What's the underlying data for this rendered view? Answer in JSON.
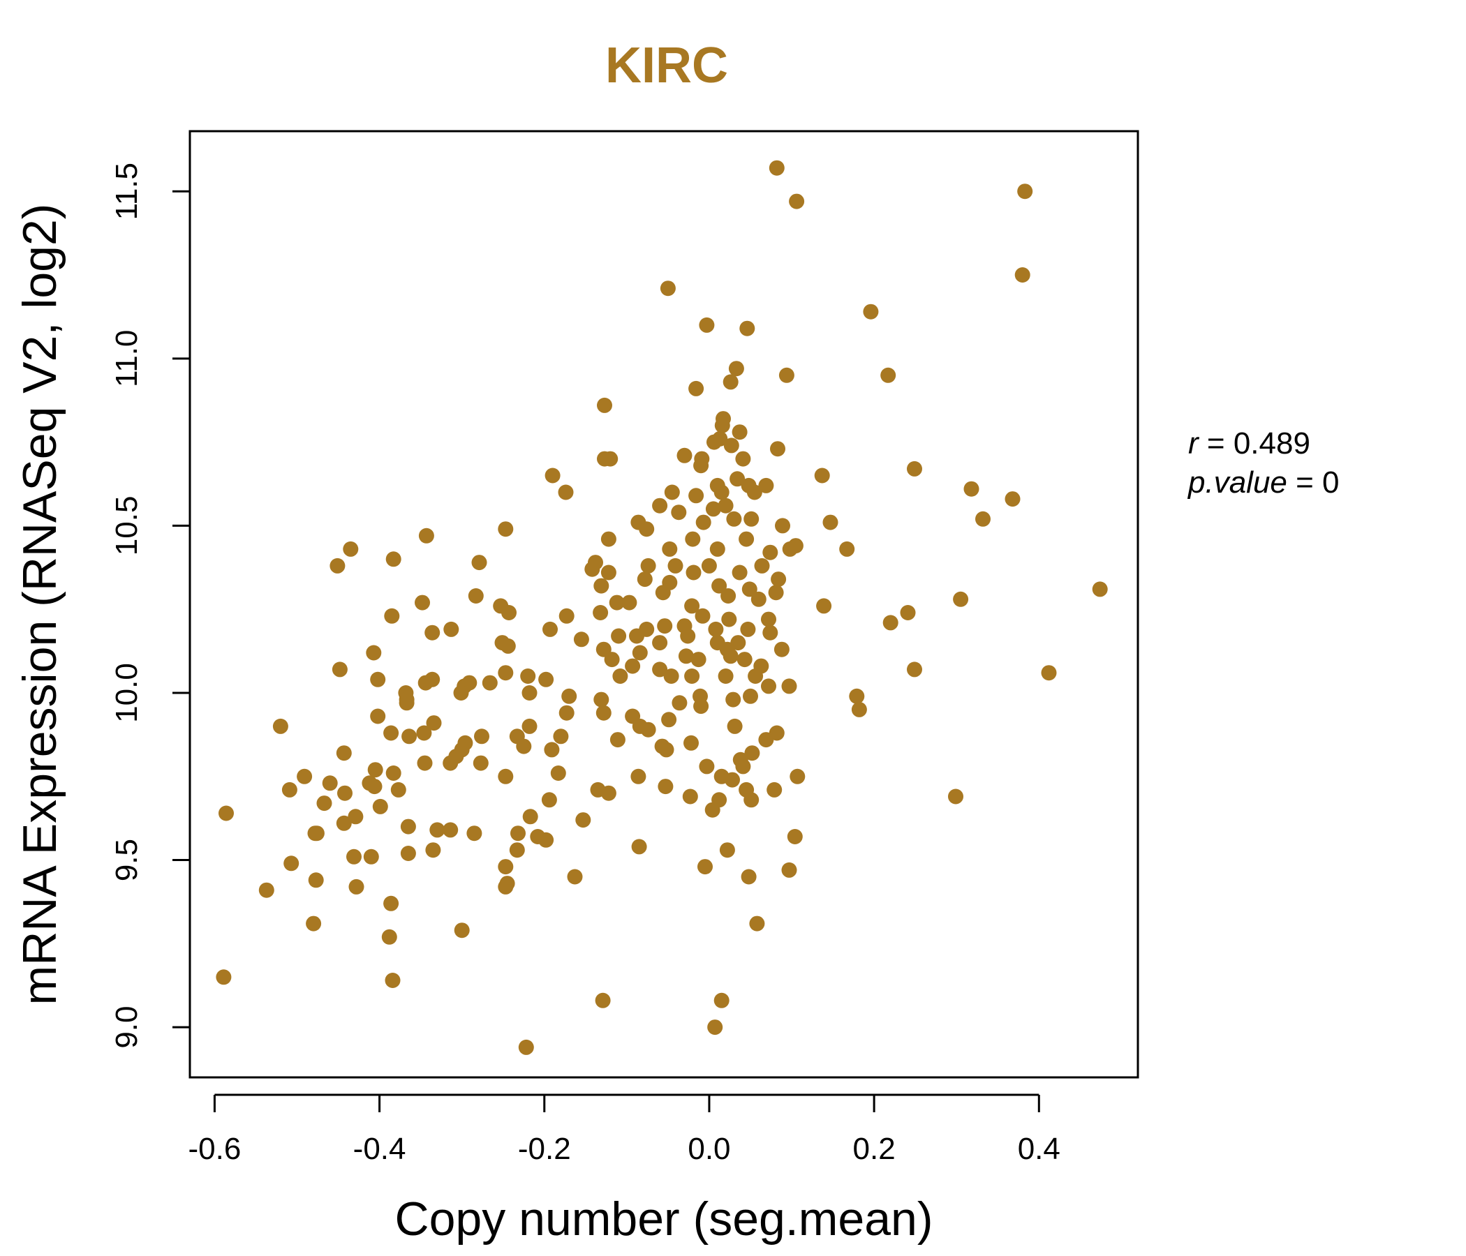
{
  "chart_data": {
    "type": "scatter",
    "title": "KIRC",
    "xlabel": "Copy number (seg.mean)",
    "ylabel": "mRNA Expression (RNASeq V2, log2)",
    "xlim": [
      -0.63,
      0.52
    ],
    "ylim": [
      8.85,
      11.68
    ],
    "x_ticks": [
      "-0.6",
      "-0.4",
      "-0.2",
      "0.0",
      "0.2",
      "0.4"
    ],
    "y_ticks": [
      "9.0",
      "9.5",
      "10.0",
      "10.5",
      "11.0",
      "11.5"
    ],
    "grid": false,
    "color": "#a87822",
    "annotation": {
      "r_label": "r",
      "r_value": "0.489",
      "p_label": "p.value",
      "p_value": "0"
    },
    "series": [
      {
        "points": [
          [
            0.082,
            11.57
          ],
          [
            0.106,
            11.47
          ],
          [
            0.383,
            11.5
          ],
          [
            0.38,
            11.25
          ],
          [
            -0.05,
            11.21
          ],
          [
            0.196,
            11.14
          ],
          [
            -0.003,
            11.1
          ],
          [
            0.046,
            11.09
          ],
          [
            0.033,
            10.97
          ],
          [
            0.026,
            10.93
          ],
          [
            0.094,
            10.95
          ],
          [
            0.217,
            10.95
          ],
          [
            -0.016,
            10.91
          ],
          [
            -0.127,
            10.86
          ],
          [
            0.017,
            10.82
          ],
          [
            0.016,
            10.8
          ],
          [
            0.037,
            10.78
          ],
          [
            0.013,
            10.76
          ],
          [
            0.006,
            10.75
          ],
          [
            0.083,
            10.73
          ],
          [
            0.027,
            10.74
          ],
          [
            -0.03,
            10.71
          ],
          [
            -0.127,
            10.7
          ],
          [
            -0.12,
            10.7
          ],
          [
            -0.009,
            10.7
          ],
          [
            0.041,
            10.7
          ],
          [
            -0.01,
            10.68
          ],
          [
            0.249,
            10.67
          ],
          [
            -0.19,
            10.65
          ],
          [
            0.137,
            10.65
          ],
          [
            0.034,
            10.64
          ],
          [
            0.01,
            10.62
          ],
          [
            0.048,
            10.62
          ],
          [
            0.069,
            10.62
          ],
          [
            0.318,
            10.61
          ],
          [
            -0.174,
            10.6
          ],
          [
            -0.045,
            10.6
          ],
          [
            -0.016,
            10.59
          ],
          [
            0.015,
            10.6
          ],
          [
            0.055,
            10.6
          ],
          [
            0.368,
            10.58
          ],
          [
            -0.06,
            10.56
          ],
          [
            0.02,
            10.56
          ],
          [
            0.005,
            10.55
          ],
          [
            -0.037,
            10.54
          ],
          [
            0.332,
            10.52
          ],
          [
            0.147,
            10.51
          ],
          [
            -0.086,
            10.51
          ],
          [
            -0.076,
            10.49
          ],
          [
            -0.007,
            10.51
          ],
          [
            0.03,
            10.52
          ],
          [
            0.089,
            10.5
          ],
          [
            0.051,
            10.52
          ],
          [
            -0.247,
            10.49
          ],
          [
            -0.343,
            10.47
          ],
          [
            -0.122,
            10.46
          ],
          [
            -0.02,
            10.46
          ],
          [
            0.045,
            10.46
          ],
          [
            0.105,
            10.44
          ],
          [
            0.098,
            10.43
          ],
          [
            -0.435,
            10.43
          ],
          [
            -0.048,
            10.43
          ],
          [
            0.01,
            10.43
          ],
          [
            0.074,
            10.42
          ],
          [
            0.167,
            10.43
          ],
          [
            -0.383,
            10.4
          ],
          [
            -0.279,
            10.39
          ],
          [
            -0.138,
            10.39
          ],
          [
            -0.074,
            10.38
          ],
          [
            -0.041,
            10.38
          ],
          [
            0.0,
            10.38
          ],
          [
            0.064,
            10.38
          ],
          [
            -0.451,
            10.38
          ],
          [
            -0.142,
            10.37
          ],
          [
            -0.019,
            10.36
          ],
          [
            0.037,
            10.36
          ],
          [
            -0.122,
            10.36
          ],
          [
            -0.078,
            10.34
          ],
          [
            0.084,
            10.34
          ],
          [
            -0.048,
            10.33
          ],
          [
            -0.131,
            10.32
          ],
          [
            0.012,
            10.32
          ],
          [
            0.049,
            10.31
          ],
          [
            0.474,
            10.31
          ],
          [
            -0.283,
            10.29
          ],
          [
            0.081,
            10.3
          ],
          [
            -0.056,
            10.3
          ],
          [
            0.023,
            10.29
          ],
          [
            0.305,
            10.28
          ],
          [
            0.06,
            10.28
          ],
          [
            -0.348,
            10.27
          ],
          [
            -0.112,
            10.27
          ],
          [
            -0.097,
            10.27
          ],
          [
            -0.021,
            10.26
          ],
          [
            0.139,
            10.26
          ],
          [
            -0.253,
            10.26
          ],
          [
            -0.132,
            10.24
          ],
          [
            -0.243,
            10.24
          ],
          [
            0.241,
            10.24
          ],
          [
            -0.008,
            10.23
          ],
          [
            -0.385,
            10.23
          ],
          [
            -0.173,
            10.23
          ],
          [
            0.024,
            10.22
          ],
          [
            0.072,
            10.22
          ],
          [
            0.22,
            10.21
          ],
          [
            -0.054,
            10.2
          ],
          [
            -0.03,
            10.2
          ],
          [
            -0.313,
            10.19
          ],
          [
            -0.193,
            10.19
          ],
          [
            -0.076,
            10.19
          ],
          [
            0.008,
            10.19
          ],
          [
            0.047,
            10.19
          ],
          [
            -0.336,
            10.18
          ],
          [
            -0.11,
            10.17
          ],
          [
            -0.088,
            10.17
          ],
          [
            0.074,
            10.18
          ],
          [
            -0.026,
            10.17
          ],
          [
            -0.251,
            10.15
          ],
          [
            -0.155,
            10.16
          ],
          [
            -0.06,
            10.15
          ],
          [
            0.01,
            10.15
          ],
          [
            0.035,
            10.15
          ],
          [
            -0.244,
            10.14
          ],
          [
            -0.128,
            10.13
          ],
          [
            0.022,
            10.13
          ],
          [
            0.088,
            10.13
          ],
          [
            -0.407,
            10.12
          ],
          [
            -0.084,
            10.12
          ],
          [
            -0.028,
            10.11
          ],
          [
            0.026,
            10.11
          ],
          [
            -0.118,
            10.1
          ],
          [
            -0.013,
            10.1
          ],
          [
            0.043,
            10.1
          ],
          [
            -0.093,
            10.08
          ],
          [
            0.063,
            10.08
          ],
          [
            -0.448,
            10.07
          ],
          [
            -0.247,
            10.06
          ],
          [
            0.249,
            10.07
          ],
          [
            0.412,
            10.06
          ],
          [
            -0.06,
            10.07
          ],
          [
            -0.046,
            10.05
          ],
          [
            -0.021,
            10.05
          ],
          [
            0.02,
            10.05
          ],
          [
            0.056,
            10.05
          ],
          [
            -0.108,
            10.05
          ],
          [
            -0.402,
            10.04
          ],
          [
            -0.336,
            10.04
          ],
          [
            -0.344,
            10.03
          ],
          [
            -0.291,
            10.03
          ],
          [
            -0.266,
            10.03
          ],
          [
            -0.22,
            10.05
          ],
          [
            -0.198,
            10.04
          ],
          [
            -0.297,
            10.02
          ],
          [
            0.072,
            10.02
          ],
          [
            0.097,
            10.02
          ],
          [
            -0.218,
            10.0
          ],
          [
            -0.301,
            10.0
          ],
          [
            -0.368,
            10.0
          ],
          [
            -0.367,
            9.98
          ],
          [
            -0.17,
            9.99
          ],
          [
            -0.011,
            9.99
          ],
          [
            0.05,
            9.99
          ],
          [
            0.179,
            9.99
          ],
          [
            -0.131,
            9.98
          ],
          [
            -0.036,
            9.97
          ],
          [
            -0.367,
            9.97
          ],
          [
            0.029,
            9.98
          ],
          [
            -0.01,
            9.96
          ],
          [
            0.182,
            9.95
          ],
          [
            -0.173,
            9.94
          ],
          [
            -0.128,
            9.94
          ],
          [
            -0.093,
            9.93
          ],
          [
            -0.402,
            9.93
          ],
          [
            -0.049,
            9.92
          ],
          [
            -0.52,
            9.9
          ],
          [
            -0.334,
            9.91
          ],
          [
            -0.218,
            9.9
          ],
          [
            -0.084,
            9.9
          ],
          [
            0.031,
            9.9
          ],
          [
            -0.074,
            9.89
          ],
          [
            -0.386,
            9.88
          ],
          [
            -0.346,
            9.88
          ],
          [
            -0.364,
            9.87
          ],
          [
            -0.276,
            9.87
          ],
          [
            -0.233,
            9.87
          ],
          [
            -0.18,
            9.87
          ],
          [
            0.082,
            9.88
          ],
          [
            -0.111,
            9.86
          ],
          [
            -0.022,
            9.85
          ],
          [
            0.069,
            9.86
          ],
          [
            -0.296,
            9.85
          ],
          [
            -0.057,
            9.84
          ],
          [
            -0.225,
            9.84
          ],
          [
            -0.3,
            9.83
          ],
          [
            -0.191,
            9.83
          ],
          [
            -0.052,
            9.83
          ],
          [
            0.052,
            9.82
          ],
          [
            -0.307,
            9.81
          ],
          [
            -0.443,
            9.82
          ],
          [
            0.038,
            9.8
          ],
          [
            -0.314,
            9.79
          ],
          [
            -0.277,
            9.79
          ],
          [
            -0.345,
            9.79
          ],
          [
            -0.003,
            9.78
          ],
          [
            -0.405,
            9.77
          ],
          [
            0.041,
            9.78
          ],
          [
            0.107,
            9.75
          ],
          [
            -0.383,
            9.76
          ],
          [
            -0.491,
            9.75
          ],
          [
            -0.247,
            9.75
          ],
          [
            -0.183,
            9.76
          ],
          [
            0.015,
            9.75
          ],
          [
            0.028,
            9.74
          ],
          [
            -0.086,
            9.75
          ],
          [
            -0.412,
            9.73
          ],
          [
            -0.46,
            9.73
          ],
          [
            -0.509,
            9.71
          ],
          [
            -0.442,
            9.7
          ],
          [
            -0.406,
            9.72
          ],
          [
            -0.135,
            9.71
          ],
          [
            -0.122,
            9.7
          ],
          [
            -0.053,
            9.72
          ],
          [
            0.045,
            9.71
          ],
          [
            0.079,
            9.71
          ],
          [
            -0.377,
            9.71
          ],
          [
            -0.467,
            9.67
          ],
          [
            -0.399,
            9.66
          ],
          [
            -0.194,
            9.68
          ],
          [
            -0.023,
            9.69
          ],
          [
            0.012,
            9.68
          ],
          [
            0.051,
            9.68
          ],
          [
            0.299,
            9.69
          ],
          [
            0.004,
            9.65
          ],
          [
            -0.586,
            9.64
          ],
          [
            -0.217,
            9.63
          ],
          [
            -0.429,
            9.63
          ],
          [
            -0.443,
            9.61
          ],
          [
            -0.365,
            9.6
          ],
          [
            -0.153,
            9.62
          ],
          [
            -0.33,
            9.59
          ],
          [
            -0.314,
            9.59
          ],
          [
            -0.285,
            9.58
          ],
          [
            -0.476,
            9.58
          ],
          [
            -0.478,
            9.58
          ],
          [
            -0.232,
            9.58
          ],
          [
            -0.208,
            9.57
          ],
          [
            -0.198,
            9.56
          ],
          [
            0.104,
            9.57
          ],
          [
            -0.335,
            9.53
          ],
          [
            -0.085,
            9.54
          ],
          [
            -0.365,
            9.52
          ],
          [
            -0.431,
            9.51
          ],
          [
            -0.41,
            9.51
          ],
          [
            -0.507,
            9.49
          ],
          [
            -0.233,
            9.53
          ],
          [
            0.022,
            9.53
          ],
          [
            -0.247,
            9.48
          ],
          [
            -0.005,
            9.48
          ],
          [
            0.097,
            9.47
          ],
          [
            -0.477,
            9.44
          ],
          [
            -0.245,
            9.43
          ],
          [
            -0.247,
            9.42
          ],
          [
            -0.428,
            9.42
          ],
          [
            -0.163,
            9.45
          ],
          [
            0.048,
            9.45
          ],
          [
            -0.537,
            9.41
          ],
          [
            -0.386,
            9.37
          ],
          [
            -0.48,
            9.31
          ],
          [
            -0.3,
            9.29
          ],
          [
            0.058,
            9.31
          ],
          [
            -0.388,
            9.27
          ],
          [
            -0.589,
            9.15
          ],
          [
            -0.384,
            9.14
          ],
          [
            -0.129,
            9.08
          ],
          [
            0.015,
            9.08
          ],
          [
            0.007,
            9.0
          ],
          [
            -0.222,
            8.94
          ]
        ]
      }
    ]
  }
}
